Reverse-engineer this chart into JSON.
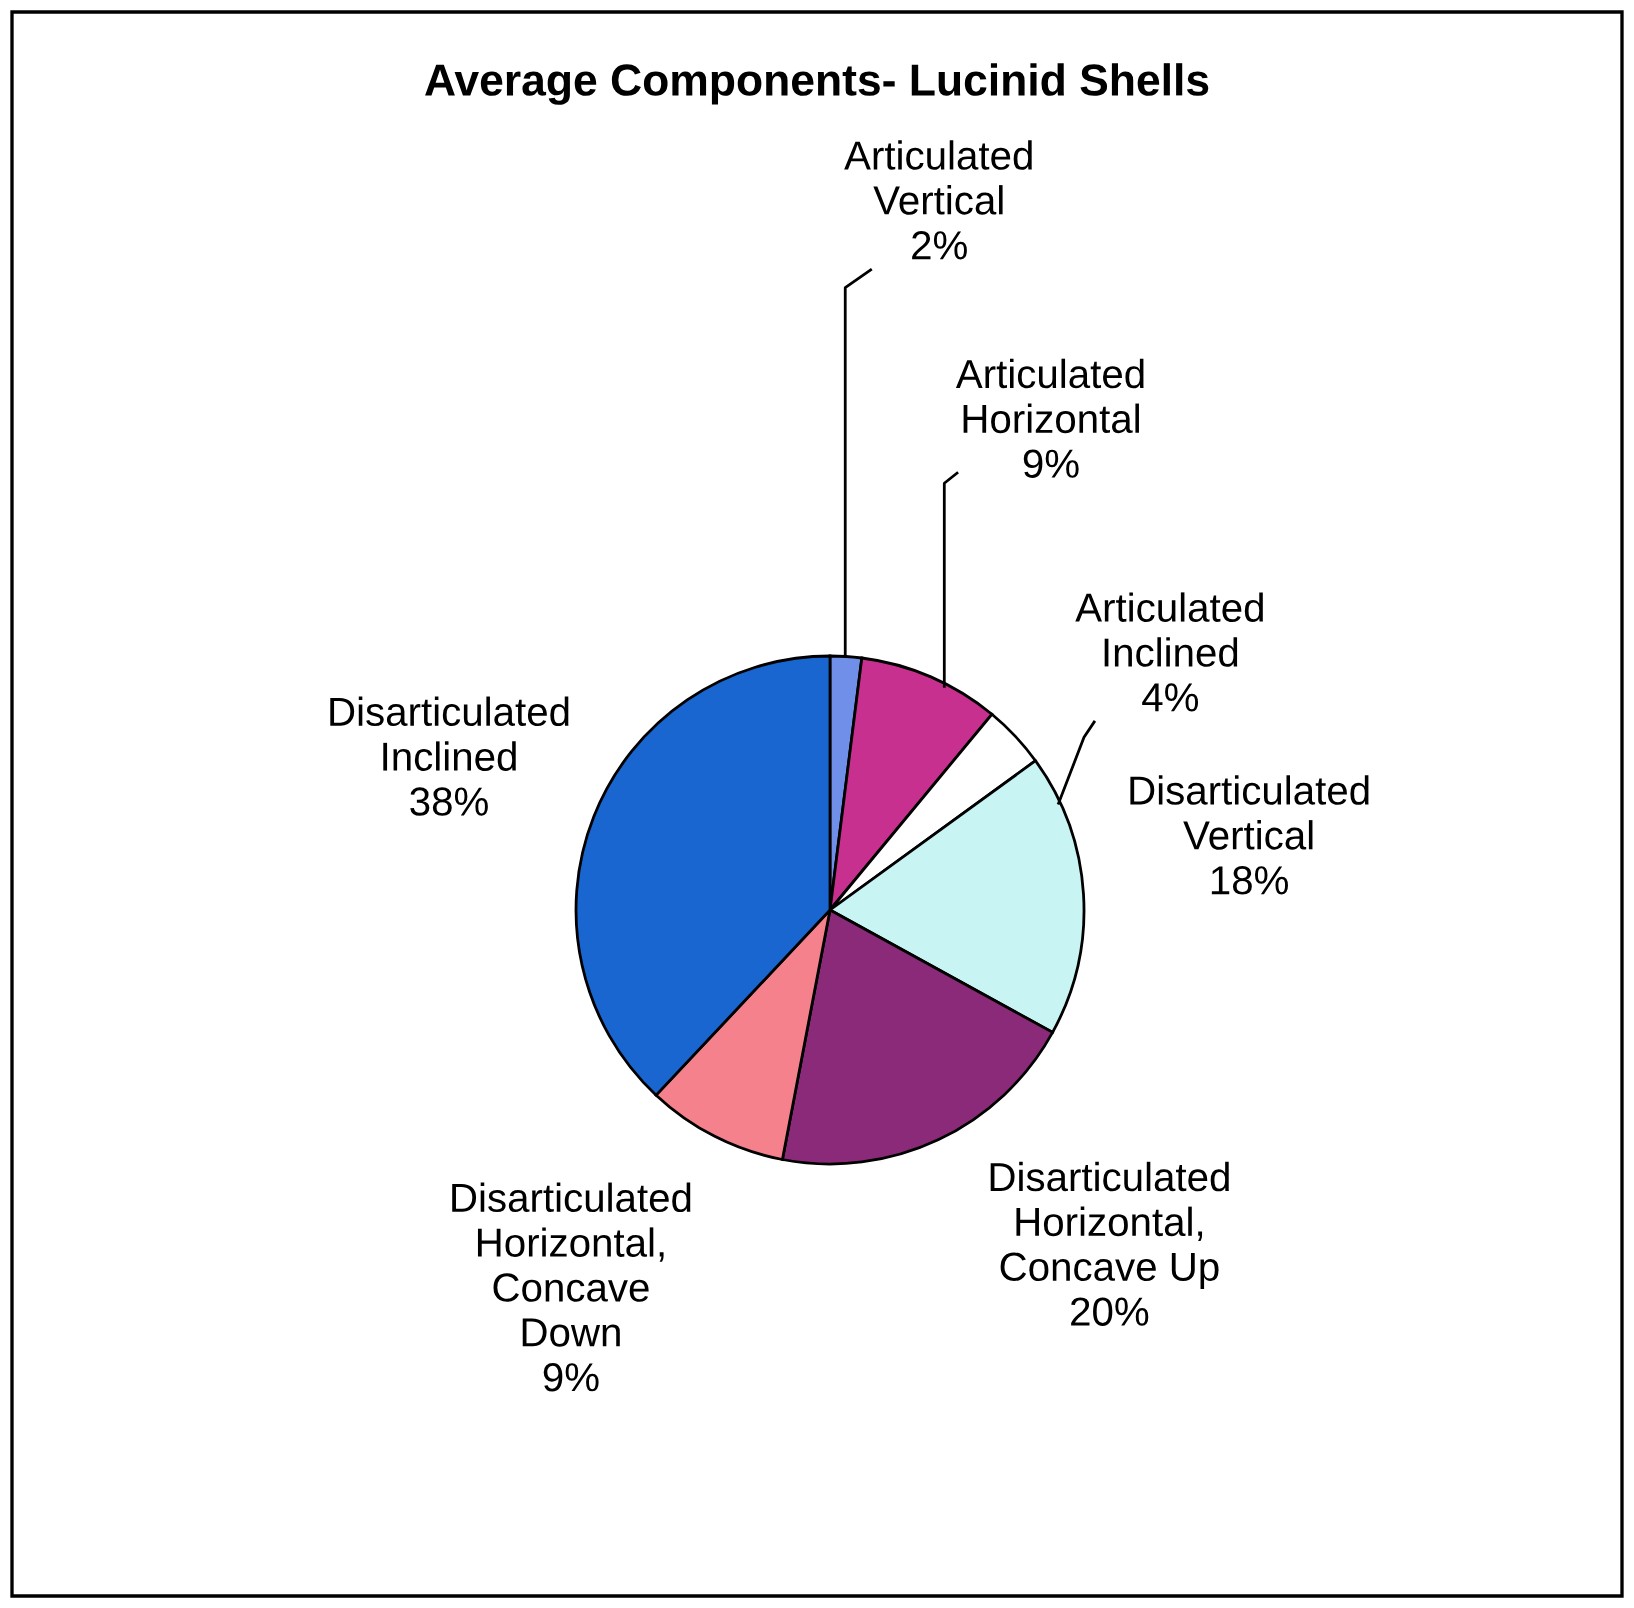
{
  "chart_data": {
    "type": "pie",
    "title": "Average Components- Lucinid Shells",
    "categories": [
      "Articulated\nVertical",
      "Articulated\nHorizontal",
      "Articulated\nInclined",
      "Disarticulated\nVertical",
      "Disarticulated\nHorizontal,\nConcave Up",
      "Disarticulated\nHorizontal,\nConcave\nDown",
      "Disarticulated\nInclined"
    ],
    "values": [
      2,
      9,
      4,
      18,
      20,
      9,
      38
    ],
    "colors": [
      "#6f8fe8",
      "#c8308f",
      "#ffffff",
      "#c8f4f4",
      "#8a2a78",
      "#f4818c",
      "#1a66d0"
    ],
    "value_labels": [
      "2%",
      "9%",
      "4%",
      "18%",
      "20%",
      "9%",
      "38%"
    ],
    "legend": false
  }
}
